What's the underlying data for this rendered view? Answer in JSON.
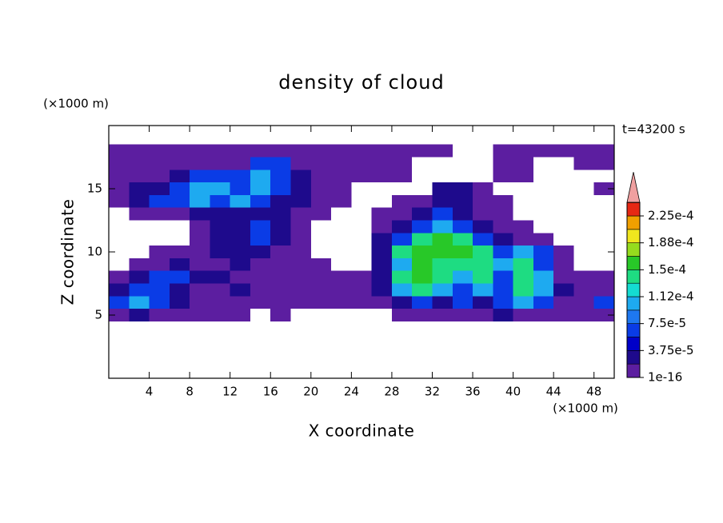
{
  "chart_data": {
    "type": "contour",
    "title": "density of cloud",
    "x_label": "X coordinate",
    "y_label": "Z coordinate",
    "x_unit": "(×1000 m)",
    "y_unit": "(×1000 m)",
    "annotation": "t=43200 s",
    "xlim": [
      0,
      50
    ],
    "ylim": [
      0,
      20
    ],
    "xticks": [
      4,
      8,
      12,
      16,
      20,
      24,
      28,
      32,
      36,
      40,
      44,
      48
    ],
    "yticks": [
      5,
      10,
      15
    ],
    "x": [
      1,
      3,
      5,
      7,
      9,
      11,
      13,
      15,
      17,
      19,
      21,
      23,
      25,
      27,
      29,
      31,
      33,
      35,
      37,
      39,
      41,
      43,
      45,
      47,
      49
    ],
    "z": [
      18,
      17,
      16,
      15,
      14,
      13,
      12,
      11,
      10,
      9,
      8,
      7,
      6,
      5
    ],
    "values": [
      [
        1e-05,
        1e-05,
        1e-05,
        1e-05,
        1e-05,
        1e-05,
        1e-05,
        1e-05,
        1e-05,
        1e-05,
        1e-05,
        1e-05,
        1e-05,
        1e-05,
        1e-05,
        1e-05,
        1e-05,
        null,
        null,
        1e-05,
        1e-05,
        1e-05,
        1e-05,
        1e-05,
        1e-05
      ],
      [
        1e-05,
        1e-05,
        1e-05,
        1e-05,
        1e-05,
        1e-05,
        1e-05,
        6e-05,
        6e-05,
        1e-05,
        1e-05,
        1e-05,
        1e-05,
        1e-05,
        1e-05,
        null,
        null,
        null,
        null,
        1e-05,
        1e-05,
        null,
        null,
        1e-05,
        1e-05
      ],
      [
        1e-05,
        1e-05,
        1e-05,
        3e-05,
        6e-05,
        6e-05,
        6e-05,
        0.0001,
        6e-05,
        3e-05,
        1e-05,
        1e-05,
        1e-05,
        1e-05,
        1e-05,
        null,
        null,
        null,
        null,
        1e-05,
        1e-05,
        null,
        null,
        null,
        null
      ],
      [
        1e-05,
        3e-05,
        3e-05,
        6e-05,
        0.0001,
        0.0001,
        6e-05,
        0.0001,
        6e-05,
        3e-05,
        1e-05,
        1e-05,
        null,
        null,
        null,
        null,
        3e-05,
        3e-05,
        1e-05,
        null,
        null,
        null,
        null,
        null,
        1e-05
      ],
      [
        1e-05,
        3e-05,
        6e-05,
        6e-05,
        0.0001,
        6e-05,
        0.0001,
        6e-05,
        3e-05,
        3e-05,
        1e-05,
        1e-05,
        null,
        null,
        1e-05,
        1e-05,
        3e-05,
        3e-05,
        1e-05,
        1e-05,
        null,
        null,
        null,
        null,
        null
      ],
      [
        null,
        1e-05,
        1e-05,
        1e-05,
        3e-05,
        3e-05,
        3e-05,
        3e-05,
        3e-05,
        1e-05,
        1e-05,
        null,
        null,
        1e-05,
        1e-05,
        3e-05,
        6e-05,
        3e-05,
        1e-05,
        1e-05,
        null,
        null,
        null,
        null,
        null
      ],
      [
        null,
        null,
        null,
        null,
        1e-05,
        3e-05,
        3e-05,
        6e-05,
        3e-05,
        1e-05,
        null,
        null,
        null,
        1e-05,
        3e-05,
        6e-05,
        0.0001,
        6e-05,
        3e-05,
        1e-05,
        1e-05,
        null,
        null,
        null,
        null
      ],
      [
        null,
        null,
        null,
        null,
        1e-05,
        3e-05,
        3e-05,
        6e-05,
        3e-05,
        1e-05,
        null,
        null,
        null,
        3e-05,
        6e-05,
        0.000135,
        0.00016,
        0.000135,
        6e-05,
        3e-05,
        1e-05,
        1e-05,
        null,
        null,
        null
      ],
      [
        null,
        null,
        1e-05,
        1e-05,
        1e-05,
        3e-05,
        3e-05,
        3e-05,
        1e-05,
        1e-05,
        null,
        null,
        null,
        3e-05,
        0.000135,
        0.00016,
        0.00016,
        0.00016,
        0.000135,
        6e-05,
        0.0001,
        6e-05,
        1e-05,
        null,
        null
      ],
      [
        null,
        1e-05,
        1e-05,
        3e-05,
        1e-05,
        1e-05,
        3e-05,
        1e-05,
        1e-05,
        1e-05,
        1e-05,
        null,
        null,
        3e-05,
        0.0001,
        0.00016,
        0.000135,
        0.000135,
        0.000135,
        0.0001,
        0.000135,
        6e-05,
        1e-05,
        null,
        null
      ],
      [
        1e-05,
        3e-05,
        6e-05,
        6e-05,
        3e-05,
        3e-05,
        1e-05,
        1e-05,
        1e-05,
        1e-05,
        1e-05,
        1e-05,
        1e-05,
        3e-05,
        0.000135,
        0.00016,
        0.000135,
        0.0001,
        0.000135,
        6e-05,
        0.000135,
        0.0001,
        1e-05,
        1e-05,
        1e-05
      ],
      [
        3e-05,
        6e-05,
        6e-05,
        3e-05,
        1e-05,
        1e-05,
        3e-05,
        1e-05,
        1e-05,
        1e-05,
        1e-05,
        1e-05,
        1e-05,
        3e-05,
        0.0001,
        0.000135,
        0.0001,
        6e-05,
        0.0001,
        6e-05,
        0.000135,
        0.0001,
        3e-05,
        1e-05,
        1e-05
      ],
      [
        6e-05,
        0.0001,
        6e-05,
        3e-05,
        1e-05,
        1e-05,
        1e-05,
        1e-05,
        1e-05,
        1e-05,
        1e-05,
        1e-05,
        1e-05,
        1e-05,
        3e-05,
        6e-05,
        3e-05,
        6e-05,
        3e-05,
        6e-05,
        0.0001,
        6e-05,
        1e-05,
        1e-05,
        6e-05
      ],
      [
        1e-05,
        3e-05,
        1e-05,
        1e-05,
        1e-05,
        1e-05,
        1e-05,
        null,
        1e-05,
        null,
        null,
        null,
        null,
        null,
        1e-05,
        1e-05,
        1e-05,
        1e-05,
        1e-05,
        3e-05,
        1e-05,
        1e-05,
        1e-05,
        1e-05,
        1e-05
      ]
    ],
    "levels": [
      1e-16,
      1.875e-05,
      3.75e-05,
      5.625e-05,
      7.5e-05,
      9.375e-05,
      0.0001125,
      0.00013125,
      0.00015,
      0.00016875,
      0.0001875,
      0.00020625,
      0.000225,
      0.00024375
    ],
    "colors": [
      "#5c1ea0",
      "#1e0a8c",
      "#0000c8",
      "#0a3ce6",
      "#1e78f0",
      "#1eaaf0",
      "#14dcd2",
      "#1edc82",
      "#28c828",
      "#96dc1e",
      "#f0e61e",
      "#f0a000",
      "#e62814"
    ],
    "extend_color": "#f0a0a0",
    "colorbar_ticks": [
      {
        "value": 1e-16,
        "label": "1e-16"
      },
      {
        "value": 3.75e-05,
        "label": "3.75e-5"
      },
      {
        "value": 7.5e-05,
        "label": "7.5e-5"
      },
      {
        "value": 0.0001125,
        "label": "1.12e-4"
      },
      {
        "value": 0.00015,
        "label": "1.5e-4"
      },
      {
        "value": 0.0001875,
        "label": "1.88e-4"
      },
      {
        "value": 0.000225,
        "label": "2.25e-4"
      }
    ]
  }
}
